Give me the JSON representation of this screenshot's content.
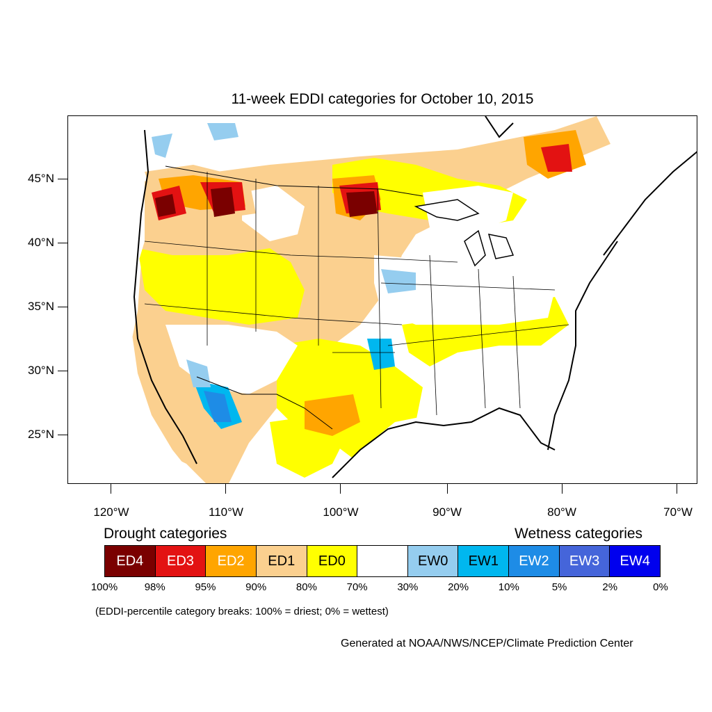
{
  "title": "11-week EDDI categories for October 10, 2015",
  "map": {
    "type": "choropleth map",
    "region": "Contiguous United States",
    "lat_labels": [
      "45°N",
      "40°N",
      "35°N",
      "30°N",
      "25°N"
    ],
    "lon_labels": [
      "120°W",
      "110°W",
      "100°W",
      "90°W",
      "80°W",
      "70°W"
    ]
  },
  "legend": {
    "drought_title": "Drought categories",
    "wetness_title": "Wetness categories",
    "categories": [
      {
        "label": "ED4",
        "color": "#7a0000",
        "text_color": "#ffffff"
      },
      {
        "label": "ED3",
        "color": "#e31212",
        "text_color": "#ffffff"
      },
      {
        "label": "ED2",
        "color": "#ffa500",
        "text_color": "#ffffff"
      },
      {
        "label": "ED1",
        "color": "#fbd08f",
        "text_color": "#000000"
      },
      {
        "label": "ED0",
        "color": "#ffff00",
        "text_color": "#000000"
      },
      {
        "label": "",
        "color": "#ffffff",
        "text_color": "#000000"
      },
      {
        "label": "EW0",
        "color": "#95cdef",
        "text_color": "#000000"
      },
      {
        "label": "EW1",
        "color": "#00b7ef",
        "text_color": "#000000"
      },
      {
        "label": "EW2",
        "color": "#1e8ce6",
        "text_color": "#ffffff"
      },
      {
        "label": "EW3",
        "color": "#4565da",
        "text_color": "#ffffff"
      },
      {
        "label": "EW4",
        "color": "#0000ee",
        "text_color": "#ffffff"
      }
    ],
    "breaks": [
      "100%",
      "98%",
      "95%",
      "90%",
      "80%",
      "70%",
      "30%",
      "20%",
      "10%",
      "5%",
      "2%",
      "0%"
    ]
  },
  "note": "(EDDI-percentile category breaks: 100% = driest; 0% = wettest)",
  "credit": "Generated at NOAA/NWS/NCEP/Climate Prediction Center"
}
